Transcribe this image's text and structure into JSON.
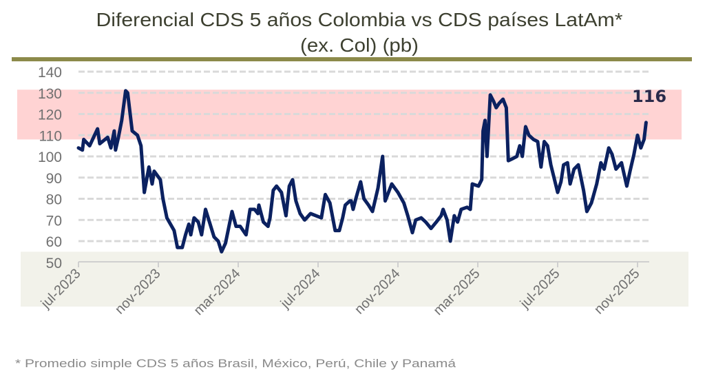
{
  "chart_data": {
    "type": "line",
    "title": "Diferencial CDS 5 años Colombia vs CDS países LatAm*",
    "subtitle": "(ex. Col) (pb)",
    "footnote": "* Promedio simple CDS 5 años Brasil, México, Perú, Chile y Panamá",
    "xlabel": "",
    "ylabel": "",
    "ylim": [
      50,
      140
    ],
    "yticks": [
      "50",
      "60",
      "70",
      "80",
      "90",
      "100",
      "110",
      "120",
      "130",
      "140"
    ],
    "xticks": [
      {
        "date": "2023-07-01",
        "label": "jul-2023"
      },
      {
        "date": "2023-11-01",
        "label": "nov-2023"
      },
      {
        "date": "2024-03-01",
        "label": "mar-2024"
      },
      {
        "date": "2024-07-01",
        "label": "jul-2024"
      },
      {
        "date": "2024-11-01",
        "label": "nov-2024"
      },
      {
        "date": "2025-03-01",
        "label": "mar-2025"
      },
      {
        "date": "2025-07-01",
        "label": "jul-2025"
      },
      {
        "date": "2025-11-01",
        "label": "nov-2025"
      }
    ],
    "grid": true,
    "legend": "none",
    "colors": {
      "line": "#0b2160",
      "high_band": "#ffd3d3",
      "low_band": "#f2f2ea",
      "rule": "#8c8a4a",
      "grid": "#d9d9d9"
    },
    "bands": [
      {
        "name": "high",
        "from": 108,
        "to": 131.5
      },
      {
        "name": "low",
        "from": 40,
        "to": 55
      }
    ],
    "last_label": "116",
    "series": [
      {
        "x": [
          "2023-07-01",
          "2023-07-07",
          "2023-07-09",
          "2023-07-18",
          "2023-07-24",
          "2023-07-30",
          "2023-08-03",
          "2023-08-15",
          "2023-08-20",
          "2023-08-25",
          "2023-08-27",
          "2023-09-01",
          "2023-09-06",
          "2023-09-12",
          "2023-09-15",
          "2023-09-22",
          "2023-09-30",
          "2023-10-05",
          "2023-10-10",
          "2023-10-17",
          "2023-10-22",
          "2023-10-25",
          "2023-11-04",
          "2023-11-08",
          "2023-11-14",
          "2023-11-25",
          "2023-11-30",
          "2023-12-07",
          "2023-12-12",
          "2023-12-17",
          "2023-12-20",
          "2023-12-25",
          "2024-01-01",
          "2024-01-06",
          "2024-01-12",
          "2024-01-17",
          "2024-01-25",
          "2024-02-01",
          "2024-02-06",
          "2024-02-12",
          "2024-02-22",
          "2024-02-28",
          "2024-03-04",
          "2024-03-13",
          "2024-03-19",
          "2024-03-26",
          "2024-03-31",
          "2024-04-02",
          "2024-04-09",
          "2024-04-16",
          "2024-04-19",
          "2024-04-24",
          "2024-04-29",
          "2024-05-06",
          "2024-05-13",
          "2024-05-18",
          "2024-05-23",
          "2024-05-28",
          "2024-06-04",
          "2024-06-11",
          "2024-06-20",
          "2024-07-06",
          "2024-07-12",
          "2024-07-19",
          "2024-07-27",
          "2024-08-03",
          "2024-08-08",
          "2024-08-12",
          "2024-08-19",
          "2024-08-21",
          "2024-08-24",
          "2024-08-28",
          "2024-09-05",
          "2024-09-10",
          "2024-09-17",
          "2024-09-23",
          "2024-10-01",
          "2024-10-08",
          "2024-10-12",
          "2024-10-22",
          "2024-11-01",
          "2024-11-10",
          "2024-11-16",
          "2024-11-23",
          "2024-11-28",
          "2024-12-06",
          "2024-12-13",
          "2024-12-21",
          "2024-12-29",
          "2025-01-06",
          "2025-01-09",
          "2025-01-15",
          "2025-01-20",
          "2025-01-26",
          "2025-01-31",
          "2025-02-06",
          "2025-02-15",
          "2025-02-20",
          "2025-02-23",
          "2025-03-02",
          "2025-03-07",
          "2025-03-09",
          "2025-03-12",
          "2025-03-15",
          "2025-03-20",
          "2025-03-25",
          "2025-03-29",
          "2025-04-03",
          "2025-04-09",
          "2025-04-14",
          "2025-04-17",
          "2025-04-24",
          "2025-04-30",
          "2025-05-04",
          "2025-05-08",
          "2025-05-13",
          "2025-05-18",
          "2025-05-25",
          "2025-06-01",
          "2025-06-06",
          "2025-06-11",
          "2025-06-16",
          "2025-06-21",
          "2025-07-01",
          "2025-07-06",
          "2025-07-10",
          "2025-07-16",
          "2025-07-20",
          "2025-07-26",
          "2025-08-02",
          "2025-08-10",
          "2025-08-15",
          "2025-08-22",
          "2025-08-30",
          "2025-09-06",
          "2025-09-11",
          "2025-09-18",
          "2025-09-23",
          "2025-09-29",
          "2025-10-07",
          "2025-10-15",
          "2025-10-20",
          "2025-10-26",
          "2025-11-01",
          "2025-11-06",
          "2025-11-11",
          "2025-11-14"
        ],
        "y": [
          104,
          103,
          108,
          105,
          109,
          113,
          106,
          109,
          104,
          112,
          103,
          109,
          117,
          131,
          130,
          112,
          110,
          105,
          83,
          95,
          87,
          93,
          89,
          80,
          71,
          65,
          57,
          57,
          63,
          68,
          63,
          71,
          69,
          63,
          75,
          70,
          62,
          60,
          55,
          59,
          74,
          67,
          67,
          63,
          75,
          75,
          73,
          77,
          69,
          67,
          71,
          84,
          86,
          83,
          72,
          86,
          89,
          79,
          73,
          70,
          73,
          71,
          82,
          78,
          65,
          65,
          71,
          77,
          79,
          79,
          75,
          80,
          88,
          80,
          77,
          74,
          85,
          100,
          79,
          87,
          83,
          78,
          72,
          64,
          70,
          71,
          69,
          66,
          69,
          72,
          75,
          70,
          60,
          72,
          69,
          75,
          76,
          75,
          87,
          86,
          89,
          112,
          117,
          100,
          129,
          126,
          123,
          125,
          127,
          123,
          98,
          99,
          100,
          105,
          100,
          114,
          110,
          108,
          107,
          95,
          107,
          105,
          96,
          83,
          88,
          96,
          97,
          87,
          94,
          96,
          84,
          74,
          78,
          87,
          97,
          94,
          104,
          101,
          94,
          97,
          86,
          93,
          101,
          110,
          104,
          108,
          116
        ]
      }
    ]
  }
}
